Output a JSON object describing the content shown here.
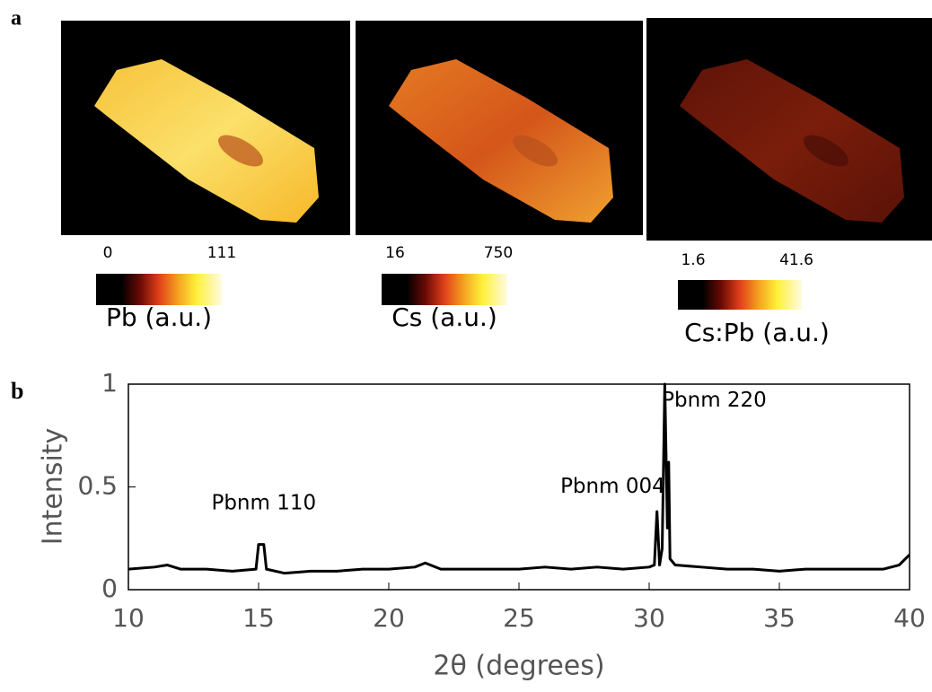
{
  "panels": [
    {
      "label": "a",
      "maps": [
        {
          "clim": [
            0,
            111
          ],
          "title": "Pb (a.u.)"
        },
        {
          "clim": [
            16,
            750
          ],
          "title": "Cs (a.u.)"
        },
        {
          "clim": [
            1.6,
            41.6
          ],
          "title": "Cs:Pb (a.u.)"
        }
      ]
    },
    {
      "label": "b"
    }
  ],
  "chart_data": {
    "type": "line",
    "x": [
      10,
      11,
      11.5,
      12,
      13,
      14,
      14.9,
      15.0,
      15.2,
      15.3,
      16,
      17,
      18,
      19,
      20,
      21,
      21.4,
      22,
      23,
      24,
      25,
      26,
      27,
      28,
      29,
      30,
      30.2,
      30.3,
      30.4,
      30.5,
      30.6,
      30.7,
      30.75,
      30.8,
      31,
      32,
      33,
      34,
      35,
      36,
      37,
      38,
      39,
      39.6,
      40
    ],
    "series": [
      {
        "color": "#000000",
        "values": [
          0.1,
          0.11,
          0.12,
          0.1,
          0.1,
          0.09,
          0.1,
          0.22,
          0.22,
          0.1,
          0.08,
          0.09,
          0.09,
          0.1,
          0.1,
          0.11,
          0.13,
          0.1,
          0.1,
          0.1,
          0.1,
          0.11,
          0.1,
          0.11,
          0.1,
          0.11,
          0.12,
          0.38,
          0.12,
          0.2,
          1.0,
          0.3,
          0.62,
          0.15,
          0.12,
          0.11,
          0.1,
          0.1,
          0.09,
          0.1,
          0.1,
          0.1,
          0.1,
          0.12,
          0.17
        ]
      }
    ],
    "xlim": [
      10,
      40
    ],
    "xticks": [
      10,
      15,
      20,
      25,
      30,
      35,
      40
    ],
    "ylim": [
      0,
      1
    ],
    "yticks": [
      0,
      0.5,
      1
    ],
    "xlabel": "2θ (degrees)",
    "ylabel": "Intensity",
    "annotations": [
      {
        "text": "Pbnm 110",
        "x": 15.2,
        "y": 0.42
      },
      {
        "text": "Pbnm 004",
        "x": 28.6,
        "y": 0.5
      },
      {
        "text": "Pbnm 220",
        "x": 32.5,
        "y": 0.92
      }
    ]
  }
}
